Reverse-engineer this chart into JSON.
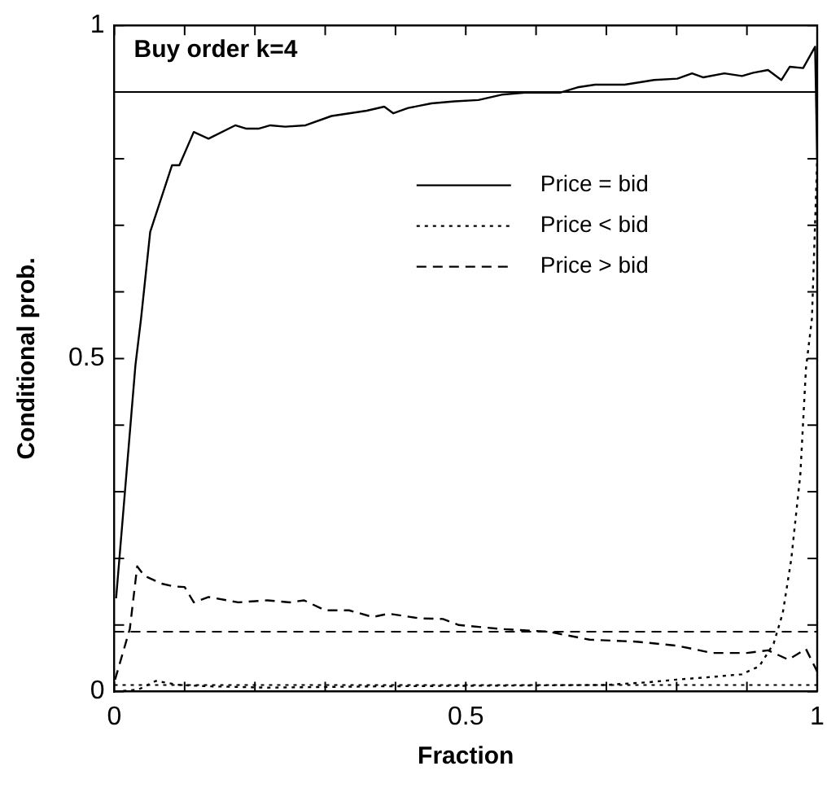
{
  "chart_data": {
    "type": "line",
    "xlabel": "Fraction",
    "ylabel": "Conditional prob.",
    "annotations": [
      "Buy order k=4"
    ],
    "xlim": [
      0,
      1
    ],
    "ylim": [
      0,
      1
    ],
    "xticks": [
      0,
      {
        "value": 0.1,
        "label": null
      },
      {
        "value": 0.2,
        "label": null
      },
      {
        "value": 0.3,
        "label": null
      },
      {
        "value": 0.4,
        "label": null
      },
      0.5,
      {
        "value": 0.6,
        "label": null
      },
      {
        "value": 0.7,
        "label": null
      },
      {
        "value": 0.8,
        "label": null
      },
      {
        "value": 0.9,
        "label": null
      },
      1
    ],
    "yticks": [
      0,
      {
        "value": 0.1,
        "label": null
      },
      {
        "value": 0.2,
        "label": null
      },
      {
        "value": 0.3,
        "label": null
      },
      {
        "value": 0.4,
        "label": null
      },
      0.5,
      {
        "value": 0.6,
        "label": null
      },
      {
        "value": 0.7,
        "label": null
      },
      {
        "value": 0.8,
        "label": null
      },
      {
        "value": 0.9,
        "label": null
      },
      1
    ],
    "grid": false,
    "legend": "top",
    "marker": "none",
    "series": [
      {
        "name": "Price = bid",
        "color": "#000000",
        "line_style": "solid",
        "x": [
          0.0025,
          0.03,
          0.038,
          0.051,
          0.082,
          0.0925,
          0.113,
          0.134,
          0.172,
          0.188,
          0.205,
          0.222,
          0.243,
          0.272,
          0.309,
          0.334,
          0.359,
          0.384,
          0.397,
          0.418,
          0.451,
          0.484,
          0.518,
          0.551,
          0.584,
          0.634,
          0.659,
          0.684,
          0.726,
          0.768,
          0.801,
          0.822,
          0.838,
          0.868,
          0.893,
          0.909,
          0.93,
          0.949,
          0.961,
          0.98,
          0.997,
          1
        ],
        "values": [
          0.14,
          0.49,
          0.56,
          0.69,
          0.79,
          0.79,
          0.84,
          0.83,
          0.85,
          0.845,
          0.845,
          0.85,
          0.848,
          0.85,
          0.864,
          0.868,
          0.872,
          0.878,
          0.868,
          0.876,
          0.883,
          0.886,
          0.888,
          0.896,
          0.899,
          0.899,
          0.907,
          0.911,
          0.911,
          0.918,
          0.92,
          0.928,
          0.922,
          0.928,
          0.924,
          0.929,
          0.933,
          0.918,
          0.938,
          0.936,
          0.968,
          0.8
        ]
      },
      {
        "name": "Price < bid",
        "color": "#000000",
        "line_style": "dotted",
        "x": [
          0.001,
          0.034,
          0.059,
          0.0925,
          0.134,
          0.2175,
          0.384,
          0.55,
          0.7,
          0.759,
          0.8,
          0.85,
          0.8925,
          0.9175,
          0.938,
          0.951,
          0.963,
          0.976,
          0.984,
          0.9925,
          1
        ],
        "values": [
          0,
          0.003,
          0.016,
          0.01,
          0.008,
          0.006,
          0.008,
          0.009,
          0.01,
          0.014,
          0.018,
          0.022,
          0.026,
          0.038,
          0.072,
          0.118,
          0.198,
          0.326,
          0.485,
          0.56,
          0.8
        ]
      },
      {
        "name": "Price > bid",
        "color": "#000000",
        "line_style": "dashed",
        "x": [
          0.001,
          0.022,
          0.0325,
          0.0425,
          0.0675,
          0.084,
          0.1,
          0.113,
          0.134,
          0.176,
          0.2175,
          0.25,
          0.27,
          0.3,
          0.334,
          0.3675,
          0.39,
          0.434,
          0.4675,
          0.49,
          0.55,
          0.6175,
          0.676,
          0.7425,
          0.8,
          0.851,
          0.9,
          0.93,
          0.959,
          0.984,
          1
        ],
        "values": [
          0.018,
          0.094,
          0.188,
          0.174,
          0.162,
          0.158,
          0.157,
          0.134,
          0.142,
          0.134,
          0.137,
          0.134,
          0.137,
          0.122,
          0.122,
          0.112,
          0.117,
          0.11,
          0.109,
          0.1,
          0.094,
          0.09,
          0.078,
          0.075,
          0.069,
          0.058,
          0.058,
          0.062,
          0.048,
          0.064,
          0.03
        ]
      }
    ],
    "ref_lines": [
      {
        "axis": "y",
        "value": 0.9,
        "color": "#000000",
        "line_style": "solid"
      },
      {
        "axis": "y",
        "value": 0.09,
        "color": "#000000",
        "line_style": "dashed"
      },
      {
        "axis": "y",
        "value": 0.01,
        "color": "#000000",
        "line_style": "dotted"
      }
    ]
  }
}
